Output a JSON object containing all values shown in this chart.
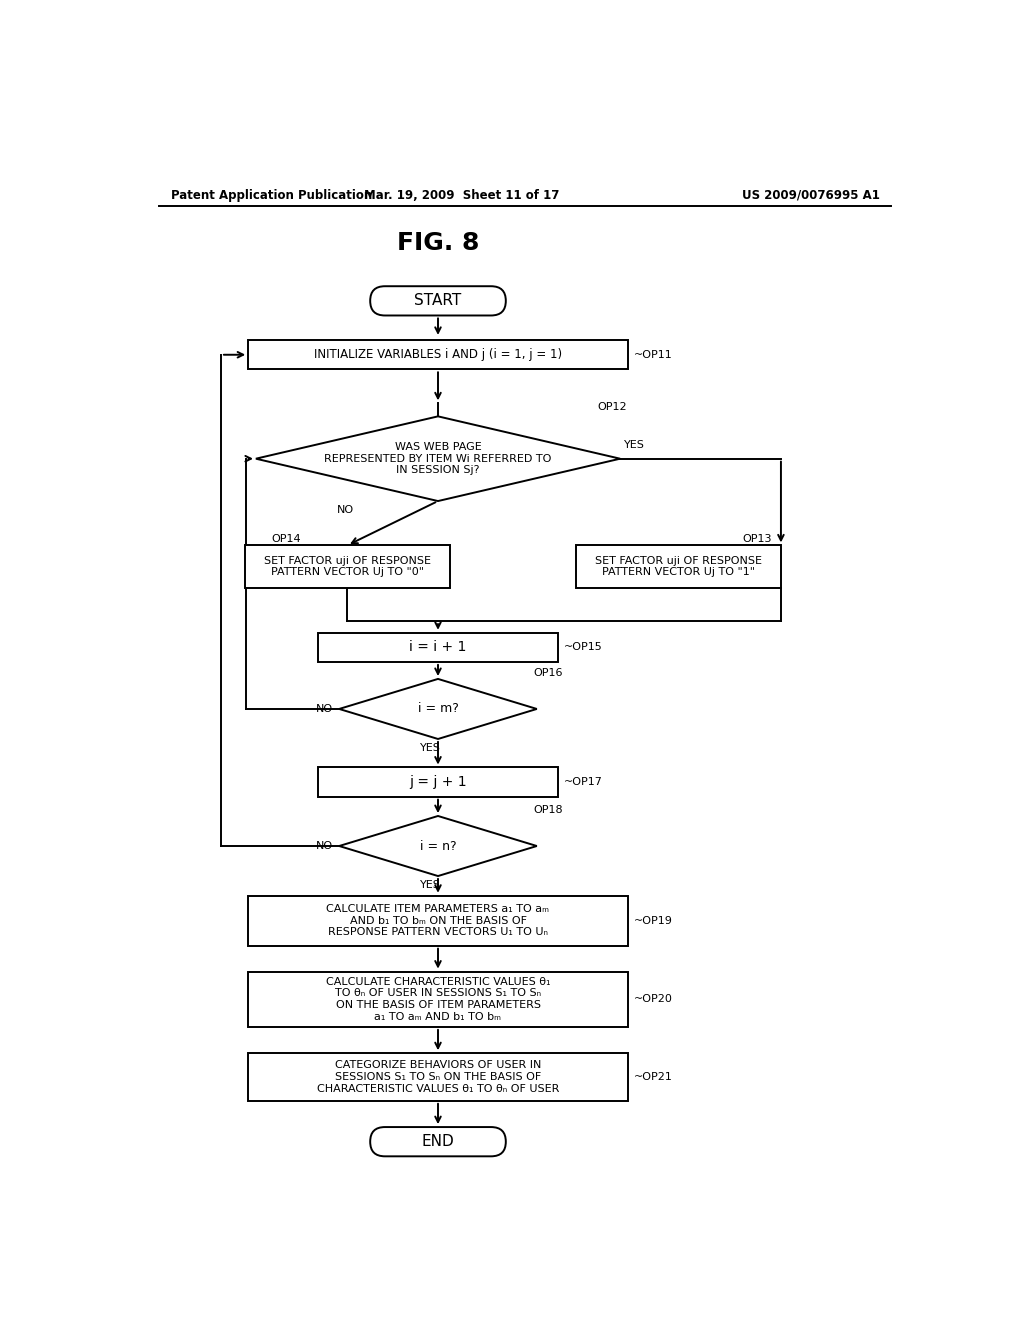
{
  "title": "FIG. 8",
  "header_left": "Patent Application Publication",
  "header_mid": "Mar. 19, 2009  Sheet 11 of 17",
  "header_right": "US 2009/0076995 A1",
  "bg_color": "#ffffff",
  "line_color": "#000000",
  "start_text": "START",
  "end_text": "END",
  "op11_text": "INITIALIZE VARIABLES i AND j (i = 1, j = 1)",
  "op11_label": "~OP11",
  "op12_text": "WAS WEB PAGE\nREPRESENTED BY ITEM Wi REFERRED TO\nIN SESSION Sj?",
  "op12_label": "OP12",
  "op12_yes": "YES",
  "op12_no": "NO",
  "op14_text": "SET FACTOR uji OF RESPONSE\nPATTERN VECTOR Uj TO \"0\"",
  "op14_label": "OP14",
  "op13_text": "SET FACTOR uji OF RESPONSE\nPATTERN VECTOR Uj TO \"1\"",
  "op13_label": "OP13",
  "op15_text": "i = i + 1",
  "op15_label": "~OP15",
  "op16_text": "i = m?",
  "op16_label": "OP16",
  "op16_yes": "YES",
  "op16_no": "NO",
  "op17_text": "j = j + 1",
  "op17_label": "~OP17",
  "op18_text": "i = n?",
  "op18_label": "OP18",
  "op18_yes": "YES",
  "op18_no": "NO",
  "op19_text": "CALCULATE ITEM PARAMETERS a₁ TO aₘ\nAND b₁ TO bₘ ON THE BASIS OF\nRESPONSE PATTERN VECTORS U₁ TO Uₙ",
  "op19_label": "~OP19",
  "op20_text": "CALCULATE CHARACTERISTIC VALUES θ₁\nTO θₙ OF USER IN SESSIONS S₁ TO Sₙ\nON THE BASIS OF ITEM PARAMETERS\na₁ TO aₘ AND b₁ TO bₘ",
  "op20_label": "~OP20",
  "op21_text": "CATEGORIZE BEHAVIORS OF USER IN\nSESSIONS S₁ TO Sₙ ON THE BASIS OF\nCHARACTERISTIC VALUES θ₁ TO θₙ OF USER",
  "op21_label": "~OP21"
}
